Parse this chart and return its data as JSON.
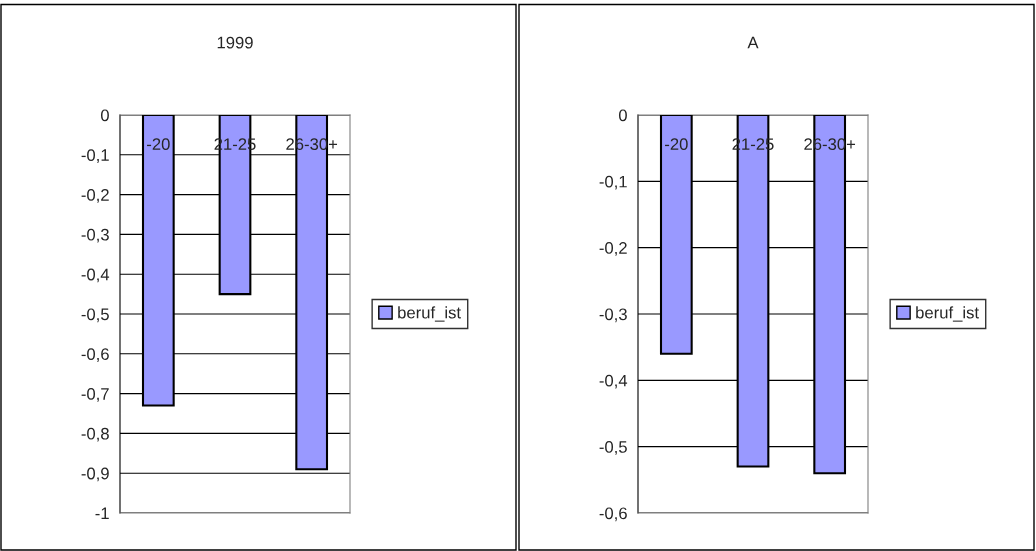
{
  "chart_data": [
    {
      "type": "bar",
      "title": "1999",
      "categories": [
        "-20",
        "21-25",
        "26-30+"
      ],
      "series": [
        {
          "name": "beruf_ist",
          "color": "#9999ff",
          "values": [
            -0.73,
            -0.45,
            -0.89
          ]
        }
      ],
      "ylim": [
        -1,
        0
      ],
      "yticks": [
        {
          "value": 0,
          "label": "0"
        },
        {
          "value": -0.1,
          "label": "-0,1"
        },
        {
          "value": -0.2,
          "label": "-0,2"
        },
        {
          "value": -0.3,
          "label": "-0,3"
        },
        {
          "value": -0.4,
          "label": "-0,4"
        },
        {
          "value": -0.5,
          "label": "-0,5"
        },
        {
          "value": -0.6,
          "label": "-0,6"
        },
        {
          "value": -0.7,
          "label": "-0,7"
        },
        {
          "value": -0.8,
          "label": "-0,8"
        },
        {
          "value": -0.9,
          "label": "-0,9"
        },
        {
          "value": -1,
          "label": "-1"
        }
      ],
      "grid": "y",
      "legend": "right"
    },
    {
      "type": "bar",
      "title": "A",
      "categories": [
        "-20",
        "21-25",
        "26-30+"
      ],
      "series": [
        {
          "name": "beruf_ist",
          "color": "#9999ff",
          "values": [
            -0.36,
            -0.53,
            -0.54
          ]
        }
      ],
      "ylim": [
        -0.6,
        0
      ],
      "yticks": [
        {
          "value": 0,
          "label": "0"
        },
        {
          "value": -0.1,
          "label": "-0,1"
        },
        {
          "value": -0.2,
          "label": "-0,2"
        },
        {
          "value": -0.3,
          "label": "-0,3"
        },
        {
          "value": -0.4,
          "label": "-0,4"
        },
        {
          "value": -0.5,
          "label": "-0,5"
        },
        {
          "value": -0.6,
          "label": "-0,6"
        }
      ],
      "grid": "y",
      "legend": "right"
    }
  ]
}
